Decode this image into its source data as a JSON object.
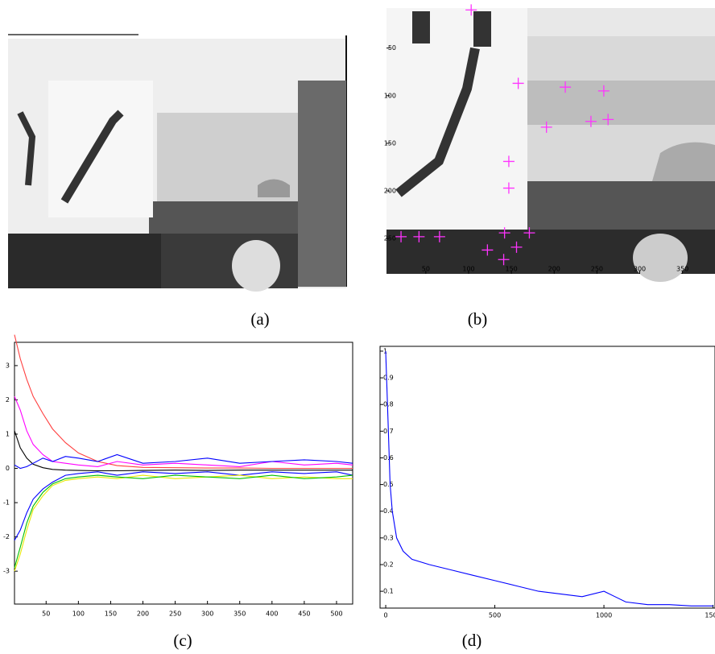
{
  "captions": [
    "(a)",
    "(b)",
    "(c)",
    "(d)"
  ],
  "chart_data": [
    {
      "type": "scatter",
      "y_inverted": true,
      "color": "#ff33ff",
      "xlim": [
        4,
        388
      ],
      "ylim": [
        8,
        287
      ],
      "xticks": [
        50,
        100,
        150,
        200,
        250,
        300,
        350
      ],
      "yticks": [
        50,
        100,
        150,
        200,
        250
      ],
      "x": [
        103,
        158,
        213,
        258,
        191,
        243,
        263,
        147,
        147,
        21,
        42,
        66,
        142,
        171,
        122,
        141,
        156
      ],
      "values": [
        10,
        87,
        91,
        95,
        133,
        127,
        125,
        169,
        197,
        248,
        248,
        248,
        244,
        244,
        262,
        272,
        259
      ]
    },
    {
      "type": "line",
      "xlim": [
        1,
        525
      ],
      "ylim": [
        -3.96,
        3.68
      ],
      "xticks": [
        50,
        100,
        150,
        200,
        250,
        300,
        350,
        400,
        450,
        500
      ],
      "yticks": [
        -3,
        -2,
        -1,
        0,
        1,
        2,
        3
      ],
      "x": [
        1,
        10,
        20,
        30,
        45,
        60,
        80,
        100,
        130,
        160,
        200,
        250,
        300,
        350,
        400,
        450,
        500,
        525
      ],
      "series": [
        {
          "color": "#ff4040",
          "values": [
            3.9,
            3.2,
            2.6,
            2.1,
            1.6,
            1.15,
            0.75,
            0.45,
            0.2,
            0.08,
            0.03,
            0.02,
            0.01,
            0.01,
            0,
            0,
            0,
            0
          ]
        },
        {
          "color": "#000000",
          "values": [
            1.1,
            0.6,
            0.3,
            0.12,
            0.02,
            -0.03,
            -0.05,
            -0.06,
            -0.07,
            -0.07,
            -0.06,
            -0.05,
            -0.06,
            -0.05,
            -0.05,
            -0.05,
            -0.05,
            -0.05
          ]
        },
        {
          "color": "#ff00ff",
          "values": [
            2.1,
            1.7,
            1.1,
            0.7,
            0.4,
            0.2,
            0.15,
            0.1,
            0.05,
            0.2,
            0.1,
            0.15,
            0.1,
            0.05,
            0.2,
            0.1,
            0.15,
            0.1
          ]
        },
        {
          "color": "#0000ff",
          "values": [
            0.1,
            0,
            0.05,
            0.15,
            0.3,
            0.2,
            0.35,
            0.3,
            0.2,
            0.4,
            0.15,
            0.2,
            0.3,
            0.15,
            0.2,
            0.25,
            0.2,
            0.15
          ]
        },
        {
          "color": "#0000ff",
          "values": [
            -2.1,
            -1.8,
            -1.3,
            -0.9,
            -0.6,
            -0.4,
            -0.2,
            -0.15,
            -0.1,
            -0.2,
            -0.1,
            -0.15,
            -0.1,
            -0.2,
            -0.1,
            -0.15,
            -0.1,
            -0.2
          ]
        },
        {
          "color": "#e8e800",
          "values": [
            -3,
            -2.5,
            -1.8,
            -1.2,
            -0.8,
            -0.5,
            -0.35,
            -0.3,
            -0.25,
            -0.3,
            -0.2,
            -0.3,
            -0.25,
            -0.2,
            -0.3,
            -0.25,
            -0.3,
            -0.3
          ]
        },
        {
          "color": "#00c000",
          "values": [
            -2.9,
            -2.3,
            -1.6,
            -1.1,
            -0.7,
            -0.45,
            -0.3,
            -0.25,
            -0.2,
            -0.25,
            -0.3,
            -0.2,
            -0.25,
            -0.3,
            -0.2,
            -0.3,
            -0.25,
            -0.2
          ]
        }
      ]
    },
    {
      "type": "line",
      "xlim": [
        -26,
        1509
      ],
      "ylim": [
        0.037,
        1.018
      ],
      "xticks": [
        0,
        500,
        1000,
        1500
      ],
      "yticks": [
        0.1,
        0.2,
        0.3,
        0.4,
        0.5,
        0.6,
        0.7,
        0.8,
        0.9,
        1
      ],
      "x": [
        0,
        10,
        20,
        30,
        50,
        80,
        120,
        200,
        300,
        400,
        500,
        600,
        700,
        800,
        900,
        1000,
        1100,
        1200,
        1300,
        1400,
        1500
      ],
      "series": [
        {
          "color": "#0000ff",
          "values": [
            1,
            0.75,
            0.5,
            0.4,
            0.3,
            0.25,
            0.22,
            0.2,
            0.18,
            0.16,
            0.14,
            0.12,
            0.1,
            0.09,
            0.08,
            0.1,
            0.06,
            0.05,
            0.05,
            0.045,
            0.045
          ]
        }
      ]
    }
  ]
}
